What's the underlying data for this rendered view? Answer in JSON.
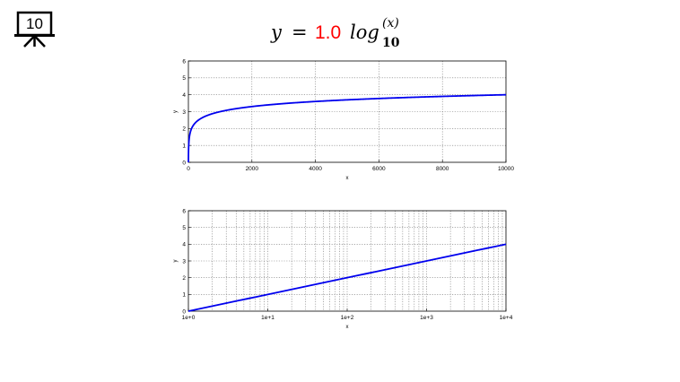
{
  "slide_icon": {
    "name": "presentation-board-icon",
    "number": "10"
  },
  "equation": {
    "y": "y",
    "equals": "=",
    "coef": "1.0",
    "func": "log",
    "base": "10",
    "arg": "(x)",
    "coef_color": "#ff0000"
  },
  "chart_data": [
    {
      "type": "line",
      "xscale": "linear",
      "xlim": [
        0,
        10000
      ],
      "ylim": [
        0,
        6
      ],
      "xlabel": "x",
      "ylabel": "y",
      "xticks": [
        0,
        2000,
        4000,
        6000,
        8000,
        10000
      ],
      "xtick_labels": [
        "0",
        "2000",
        "4000",
        "6000",
        "8000",
        "10000"
      ],
      "yticks": [
        0,
        1,
        2,
        3,
        4,
        5,
        6
      ],
      "ytick_labels": [
        "0",
        "1",
        "2",
        "3",
        "4",
        "5",
        "6"
      ],
      "grid": true,
      "function": "y = 1.0 * log10(x)",
      "x": [
        1,
        10,
        100,
        500,
        1000,
        2000,
        4000,
        6000,
        8000,
        10000
      ],
      "y": [
        0,
        1,
        2,
        2.7,
        3,
        3.3,
        3.6,
        3.78,
        3.9,
        4
      ],
      "series_color": "#0000ee"
    },
    {
      "type": "line",
      "xscale": "log",
      "xlim": [
        1,
        10000
      ],
      "ylim": [
        0,
        6
      ],
      "xlabel": "x",
      "ylabel": "y",
      "xticks": [
        1,
        10,
        100,
        1000,
        10000
      ],
      "xtick_labels": [
        "1e+0",
        "1e+1",
        "1e+2",
        "1e+3",
        "1e+4"
      ],
      "yticks": [
        0,
        1,
        2,
        3,
        4,
        5,
        6
      ],
      "ytick_labels": [
        "0",
        "1",
        "2",
        "3",
        "4",
        "5",
        "6"
      ],
      "grid": true,
      "function": "y = 1.0 * log10(x)",
      "x": [
        1,
        10,
        100,
        1000,
        10000
      ],
      "y": [
        0,
        1,
        2,
        3,
        4
      ],
      "series_color": "#0000ee"
    }
  ]
}
